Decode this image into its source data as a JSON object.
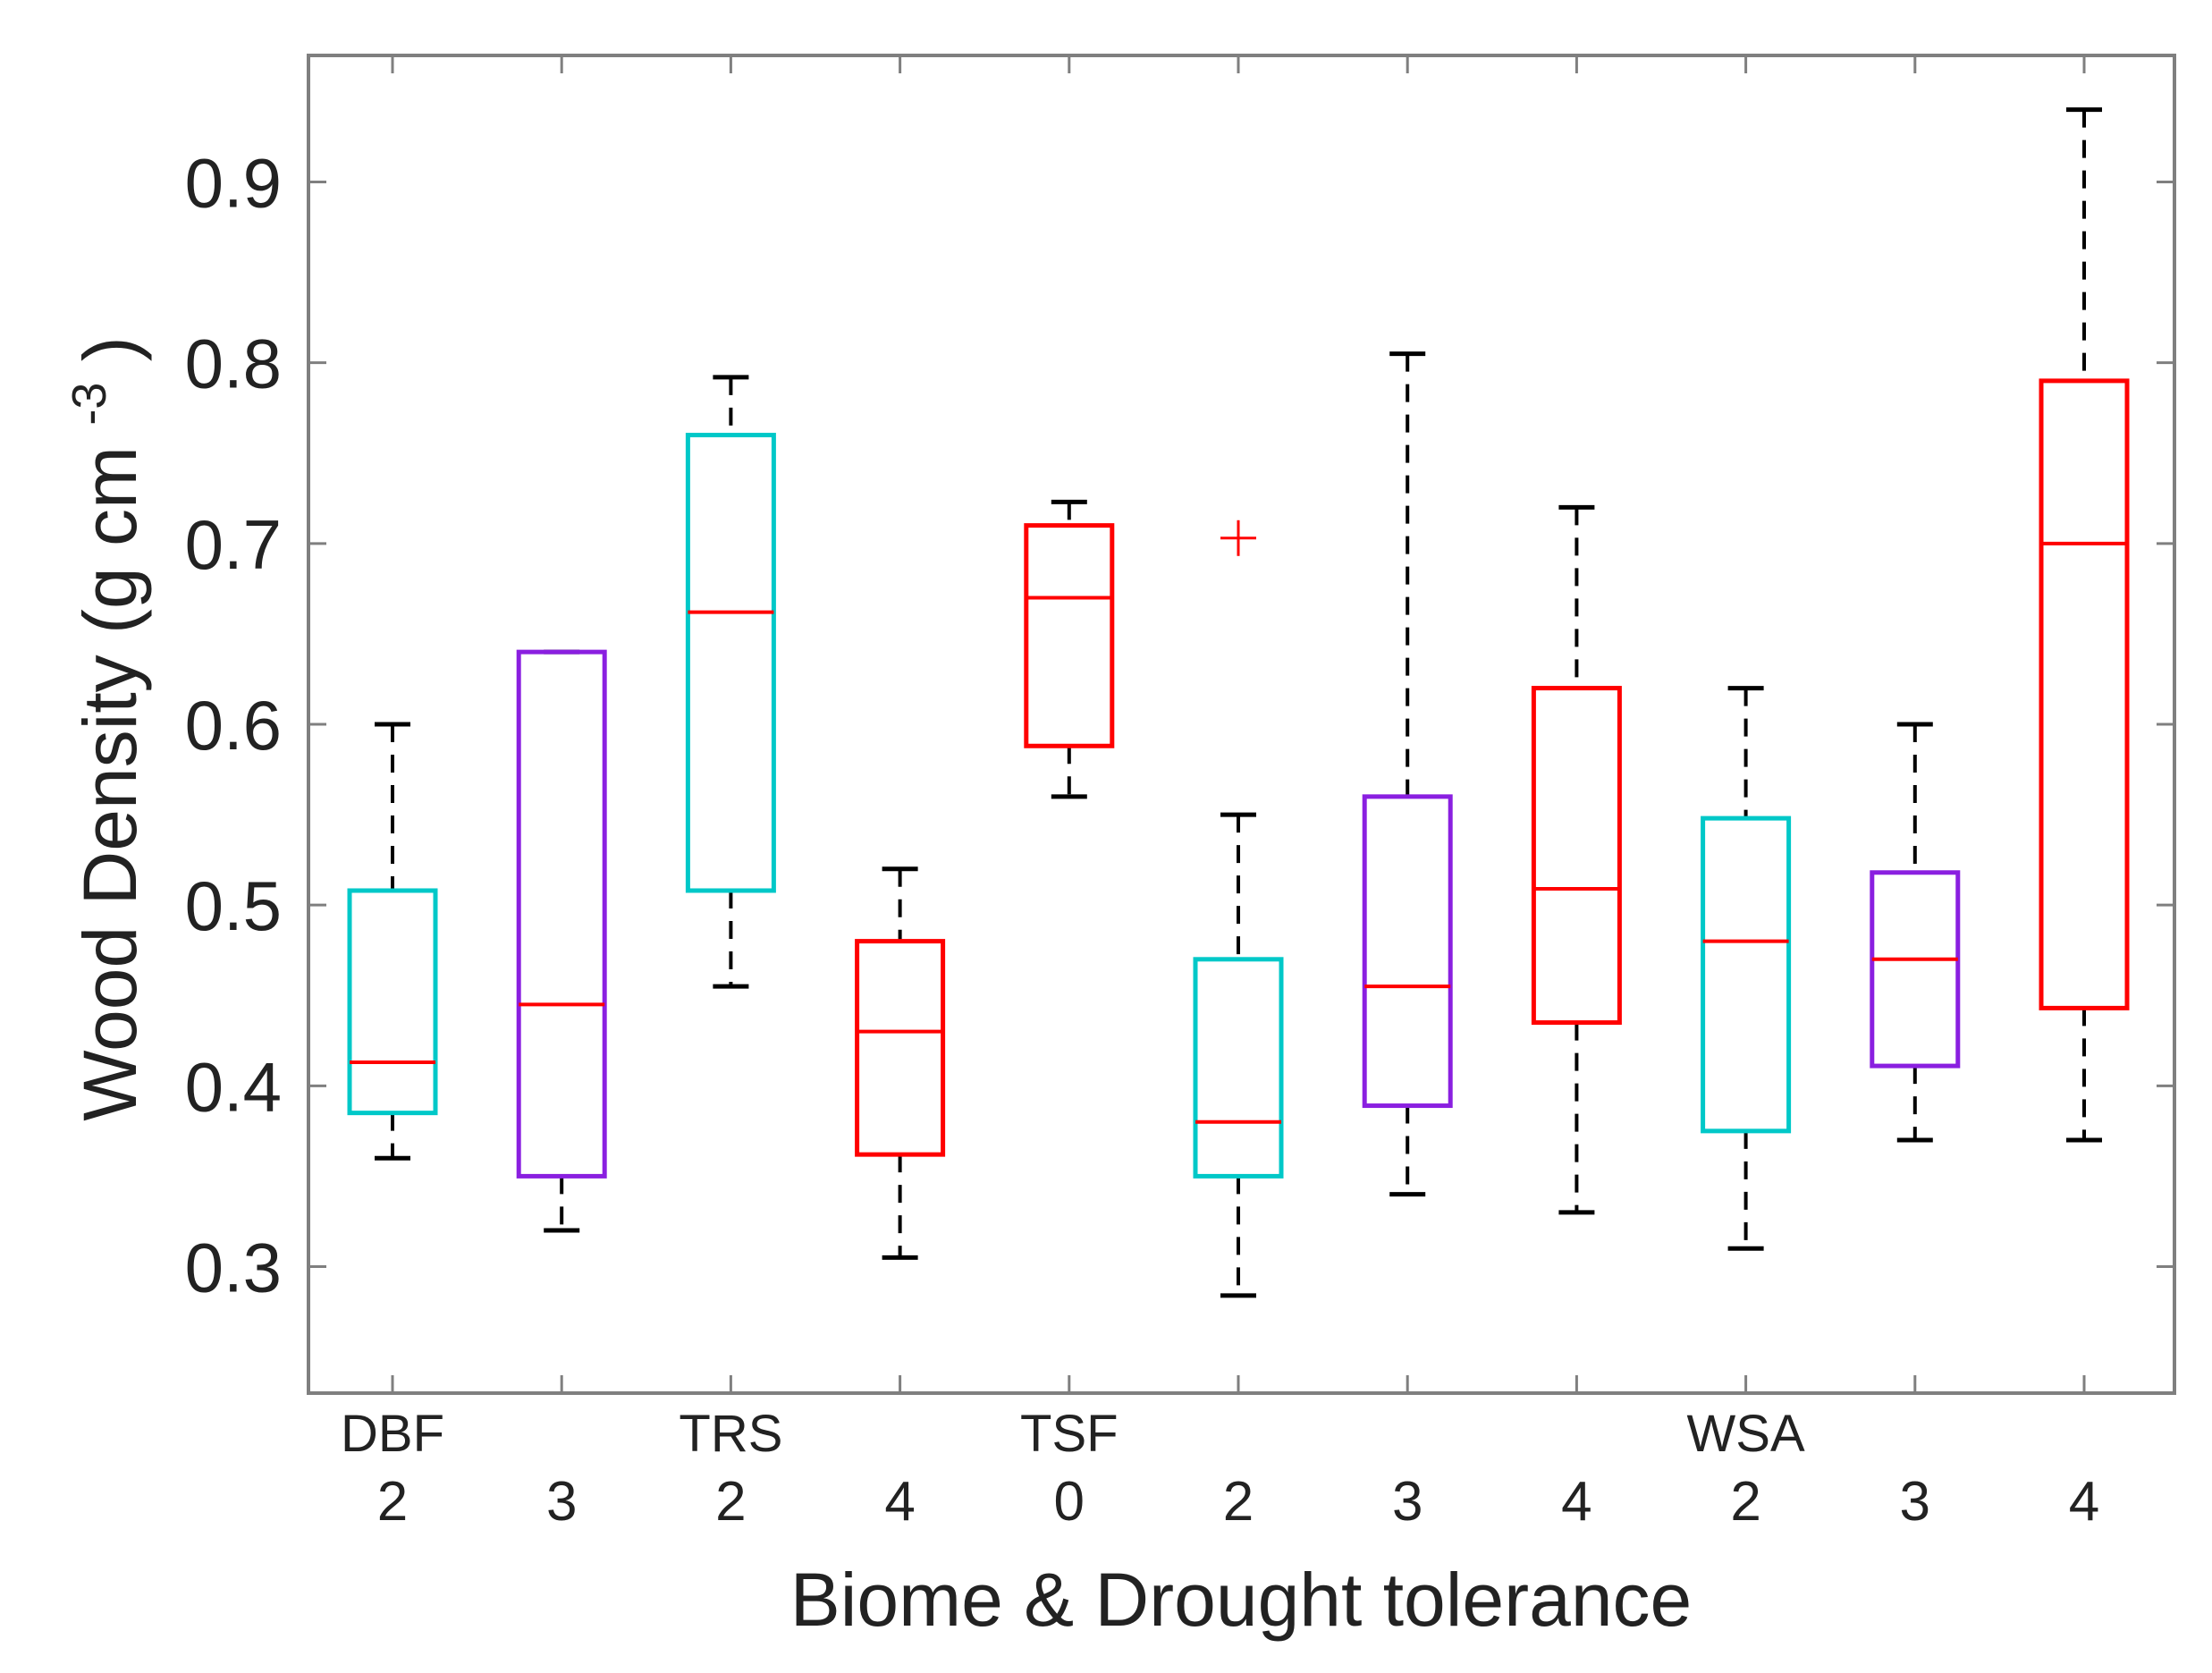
{
  "chart_data": {
    "type": "boxplot",
    "title": "",
    "xlabel": "Biome & Drought tolerance",
    "ylabel_main": "Wood Density (g cm",
    "ylabel_sup": "-3",
    "ylabel_close": ")",
    "ylim": [
      0.23,
      0.97
    ],
    "yticks": [
      0.3,
      0.4,
      0.5,
      0.6,
      0.7,
      0.8,
      0.9
    ],
    "ytick_labels": [
      "0.3",
      "0.4",
      "0.5",
      "0.6",
      "0.7",
      "0.8",
      "0.9"
    ],
    "grid": false,
    "colors": {
      "cyan": "#00c8c8",
      "purple": "#8a1fe0",
      "red": "#ff0000",
      "whisker": "#000000",
      "axis": "#7f7f7f"
    },
    "boxes": [
      {
        "biome": "DBF",
        "drought": "2",
        "color": "cyan",
        "whisker_low": 0.36,
        "q1": 0.385,
        "median": 0.413,
        "q3": 0.508,
        "whisker_high": 0.6,
        "outliers": []
      },
      {
        "biome": "",
        "drought": "3",
        "color": "purple",
        "whisker_low": 0.32,
        "q1": 0.35,
        "median": 0.445,
        "q3": 0.64,
        "whisker_high": 0.64,
        "outliers": []
      },
      {
        "biome": "TRS",
        "drought": "2",
        "color": "cyan",
        "whisker_low": 0.455,
        "q1": 0.508,
        "median": 0.662,
        "q3": 0.76,
        "whisker_high": 0.792,
        "outliers": []
      },
      {
        "biome": "",
        "drought": "4",
        "color": "red",
        "whisker_low": 0.305,
        "q1": 0.362,
        "median": 0.43,
        "q3": 0.48,
        "whisker_high": 0.52,
        "outliers": []
      },
      {
        "biome": "TSF",
        "drought": "0",
        "color": "red",
        "whisker_low": 0.56,
        "q1": 0.588,
        "median": 0.67,
        "q3": 0.71,
        "whisker_high": 0.723,
        "outliers": []
      },
      {
        "biome": "",
        "drought": "2",
        "color": "cyan",
        "whisker_low": 0.284,
        "q1": 0.35,
        "median": 0.38,
        "q3": 0.47,
        "whisker_high": 0.55,
        "outliers": [
          0.703
        ]
      },
      {
        "biome": "",
        "drought": "3",
        "color": "purple",
        "whisker_low": 0.34,
        "q1": 0.389,
        "median": 0.455,
        "q3": 0.56,
        "whisker_high": 0.805,
        "outliers": []
      },
      {
        "biome": "",
        "drought": "4",
        "color": "red",
        "whisker_low": 0.33,
        "q1": 0.435,
        "median": 0.509,
        "q3": 0.62,
        "whisker_high": 0.72,
        "outliers": []
      },
      {
        "biome": "WSA",
        "drought": "2",
        "color": "cyan",
        "whisker_low": 0.31,
        "q1": 0.375,
        "median": 0.48,
        "q3": 0.548,
        "whisker_high": 0.62,
        "outliers": []
      },
      {
        "biome": "",
        "drought": "3",
        "color": "purple",
        "whisker_low": 0.37,
        "q1": 0.411,
        "median": 0.47,
        "q3": 0.518,
        "whisker_high": 0.6,
        "outliers": []
      },
      {
        "biome": "",
        "drought": "4",
        "color": "red",
        "whisker_low": 0.37,
        "q1": 0.443,
        "median": 0.7,
        "q3": 0.79,
        "whisker_high": 0.94,
        "outliers": []
      }
    ]
  }
}
